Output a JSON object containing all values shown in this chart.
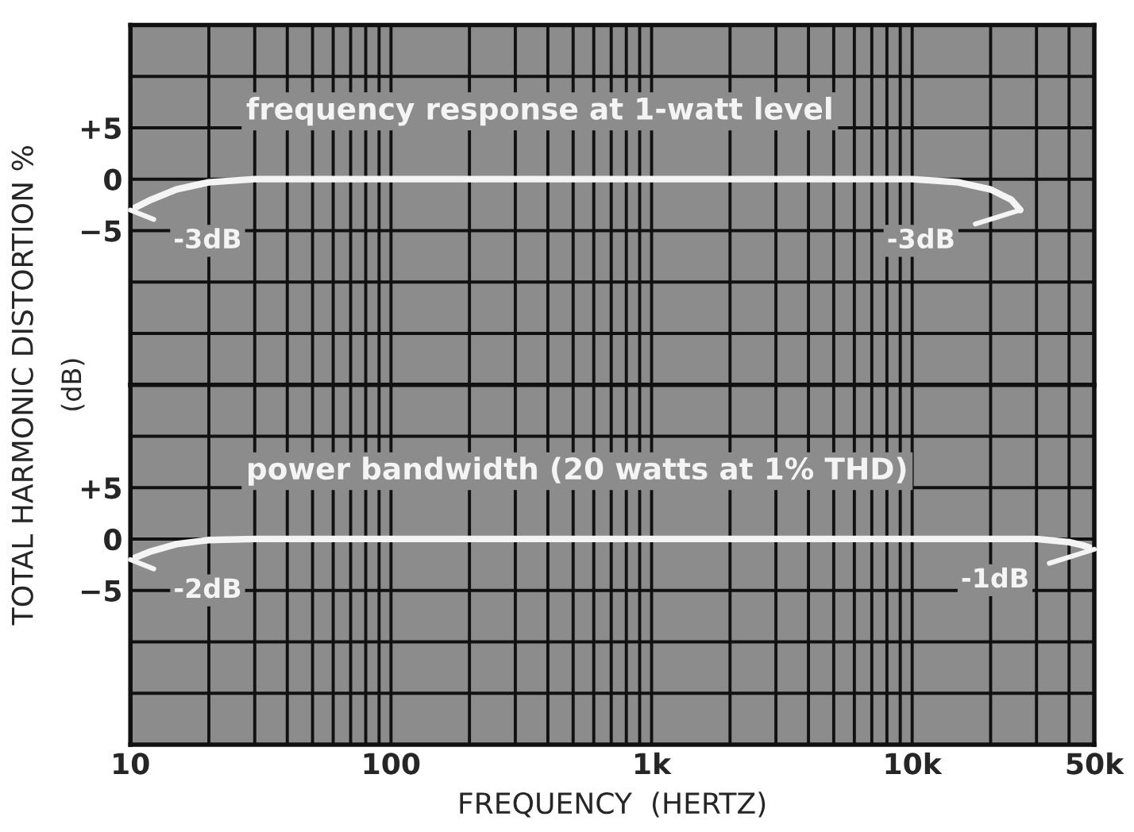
{
  "chart_data": [
    {
      "type": "line",
      "title": "frequency response at 1-watt level",
      "ylabel": "TOTAL HARMONIC DISTORTION %",
      "log": "x",
      "grid": true,
      "tick_labels": "y",
      "marker": "none",
      "line_style": "solid",
      "xlim": [
        10,
        50000
      ],
      "ylim": [
        -20,
        15
      ],
      "xticks": [
        10,
        20,
        30,
        40,
        50,
        60,
        70,
        80,
        90,
        100,
        200,
        300,
        400,
        500,
        600,
        700,
        800,
        900,
        1000,
        2000,
        3000,
        4000,
        5000,
        6000,
        7000,
        8000,
        9000,
        10000,
        20000,
        30000,
        40000,
        50000
      ],
      "yticks": [
        {
          "value": -20,
          "label": null
        },
        {
          "value": -15,
          "label": null
        },
        {
          "value": -10,
          "label": null
        },
        {
          "value": -5,
          "label": "−5"
        },
        0,
        {
          "value": 5,
          "label": "+5"
        },
        {
          "value": 10,
          "label": null
        },
        {
          "value": 15,
          "label": null
        }
      ],
      "series": [
        {
          "color": "#f4f4f4",
          "x": [
            10,
            12,
            15,
            20,
            30,
            50,
            100,
            1000,
            10000,
            15000,
            20000,
            24000,
            26000
          ],
          "values": [
            -3,
            -2,
            -1,
            -0.3,
            0,
            0,
            0,
            0,
            0,
            -0.3,
            -1,
            -2,
            -3
          ]
        }
      ],
      "annotations": [
        {
          "text": "-3dB",
          "x": 10,
          "y": -3
        },
        {
          "text": "-3dB",
          "x": 26000,
          "y": -3
        }
      ]
    },
    {
      "type": "line",
      "title": "power bandwidth (20 watts at 1% THD)",
      "ylabel": "(dB)",
      "xlabel": "FREQUENCY  (HERTZ)",
      "log": "x",
      "grid": true,
      "marker": "none",
      "line_style": "solid",
      "xlim": [
        10,
        50000
      ],
      "ylim": [
        -20,
        15
      ],
      "xticks": [
        10,
        {
          "value": 20,
          "label": null
        },
        {
          "value": 30,
          "label": null
        },
        {
          "value": 40,
          "label": null
        },
        {
          "value": 50,
          "label": null
        },
        {
          "value": 60,
          "label": null
        },
        {
          "value": 70,
          "label": null
        },
        {
          "value": 80,
          "label": null
        },
        {
          "value": 90,
          "label": null
        },
        100,
        {
          "value": 200,
          "label": null
        },
        {
          "value": 300,
          "label": null
        },
        {
          "value": 400,
          "label": null
        },
        {
          "value": 500,
          "label": null
        },
        {
          "value": 600,
          "label": null
        },
        {
          "value": 700,
          "label": null
        },
        {
          "value": 800,
          "label": null
        },
        {
          "value": 900,
          "label": null
        },
        {
          "value": 1000,
          "label": "1k"
        },
        {
          "value": 2000,
          "label": null
        },
        {
          "value": 3000,
          "label": null
        },
        {
          "value": 4000,
          "label": null
        },
        {
          "value": 5000,
          "label": null
        },
        {
          "value": 6000,
          "label": null
        },
        {
          "value": 7000,
          "label": null
        },
        {
          "value": 8000,
          "label": null
        },
        {
          "value": 9000,
          "label": null
        },
        {
          "value": 10000,
          "label": "10k"
        },
        {
          "value": 20000,
          "label": null
        },
        {
          "value": 30000,
          "label": null
        },
        {
          "value": 40000,
          "label": null
        },
        {
          "value": 50000,
          "label": "50k"
        }
      ],
      "yticks": [
        {
          "value": -20,
          "label": null
        },
        {
          "value": -15,
          "label": null
        },
        {
          "value": -10,
          "label": null
        },
        {
          "value": -5,
          "label": "−5"
        },
        0,
        {
          "value": 5,
          "label": "+5"
        },
        {
          "value": 10,
          "label": null
        },
        {
          "value": 15,
          "label": null
        }
      ],
      "series": [
        {
          "color": "#f4f4f4",
          "x": [
            10,
            12,
            15,
            20,
            30,
            100,
            1000,
            10000,
            30000,
            40000,
            45000,
            50000
          ],
          "values": [
            -2,
            -1.2,
            -0.5,
            -0.1,
            0,
            0,
            0,
            0,
            0,
            -0.3,
            -0.6,
            -1
          ]
        }
      ],
      "annotations": [
        {
          "text": "-2dB",
          "x": 10,
          "y": -2
        },
        {
          "text": "-1dB",
          "x": 50000,
          "y": -1
        }
      ]
    }
  ]
}
